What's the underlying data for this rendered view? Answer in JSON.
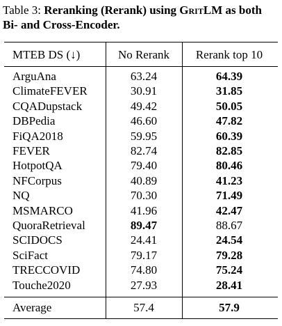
{
  "caption": {
    "label": "Table 3:",
    "title": [
      "Reranking (Rerank) using ",
      "GritLM",
      " as both Bi- and Cross-Encoder."
    ]
  },
  "table": {
    "header": [
      "MTEB DS (↓)",
      "No Rerank",
      "Rerank top 10"
    ],
    "rows": [
      {
        "cells": [
          "ArguAna",
          "63.24",
          "64.39"
        ],
        "bold": 2
      },
      {
        "cells": [
          "ClimateFEVER",
          "30.91",
          "31.85"
        ],
        "bold": 2
      },
      {
        "cells": [
          "CQADupstack",
          "49.42",
          "50.05"
        ],
        "bold": 2
      },
      {
        "cells": [
          "DBPedia",
          "46.60",
          "47.82"
        ],
        "bold": 2
      },
      {
        "cells": [
          "FiQA2018",
          "59.95",
          "60.39"
        ],
        "bold": 2
      },
      {
        "cells": [
          "FEVER",
          "82.74",
          "82.85"
        ],
        "bold": 2
      },
      {
        "cells": [
          "HotpotQA",
          "79.40",
          "80.46"
        ],
        "bold": 2
      },
      {
        "cells": [
          "NFCorpus",
          "40.89",
          "41.23"
        ],
        "bold": 2
      },
      {
        "cells": [
          "NQ",
          "70.30",
          "71.49"
        ],
        "bold": 2
      },
      {
        "cells": [
          "MSMARCO",
          "41.96",
          "42.47"
        ],
        "bold": 2
      },
      {
        "cells": [
          "QuoraRetrieval",
          "89.47",
          "88.67"
        ],
        "bold": 1
      },
      {
        "cells": [
          "SCIDOCS",
          "24.41",
          "24.54"
        ],
        "bold": 2
      },
      {
        "cells": [
          "SciFact",
          "79.17",
          "79.28"
        ],
        "bold": 2
      },
      {
        "cells": [
          "TRECCOVID",
          "74.80",
          "75.24"
        ],
        "bold": 2
      },
      {
        "cells": [
          "Touche2020",
          "27.93",
          "28.41"
        ],
        "bold": 2
      }
    ],
    "footer": {
      "cells": [
        "Average",
        "57.4",
        "57.9"
      ],
      "bold": 2
    }
  }
}
